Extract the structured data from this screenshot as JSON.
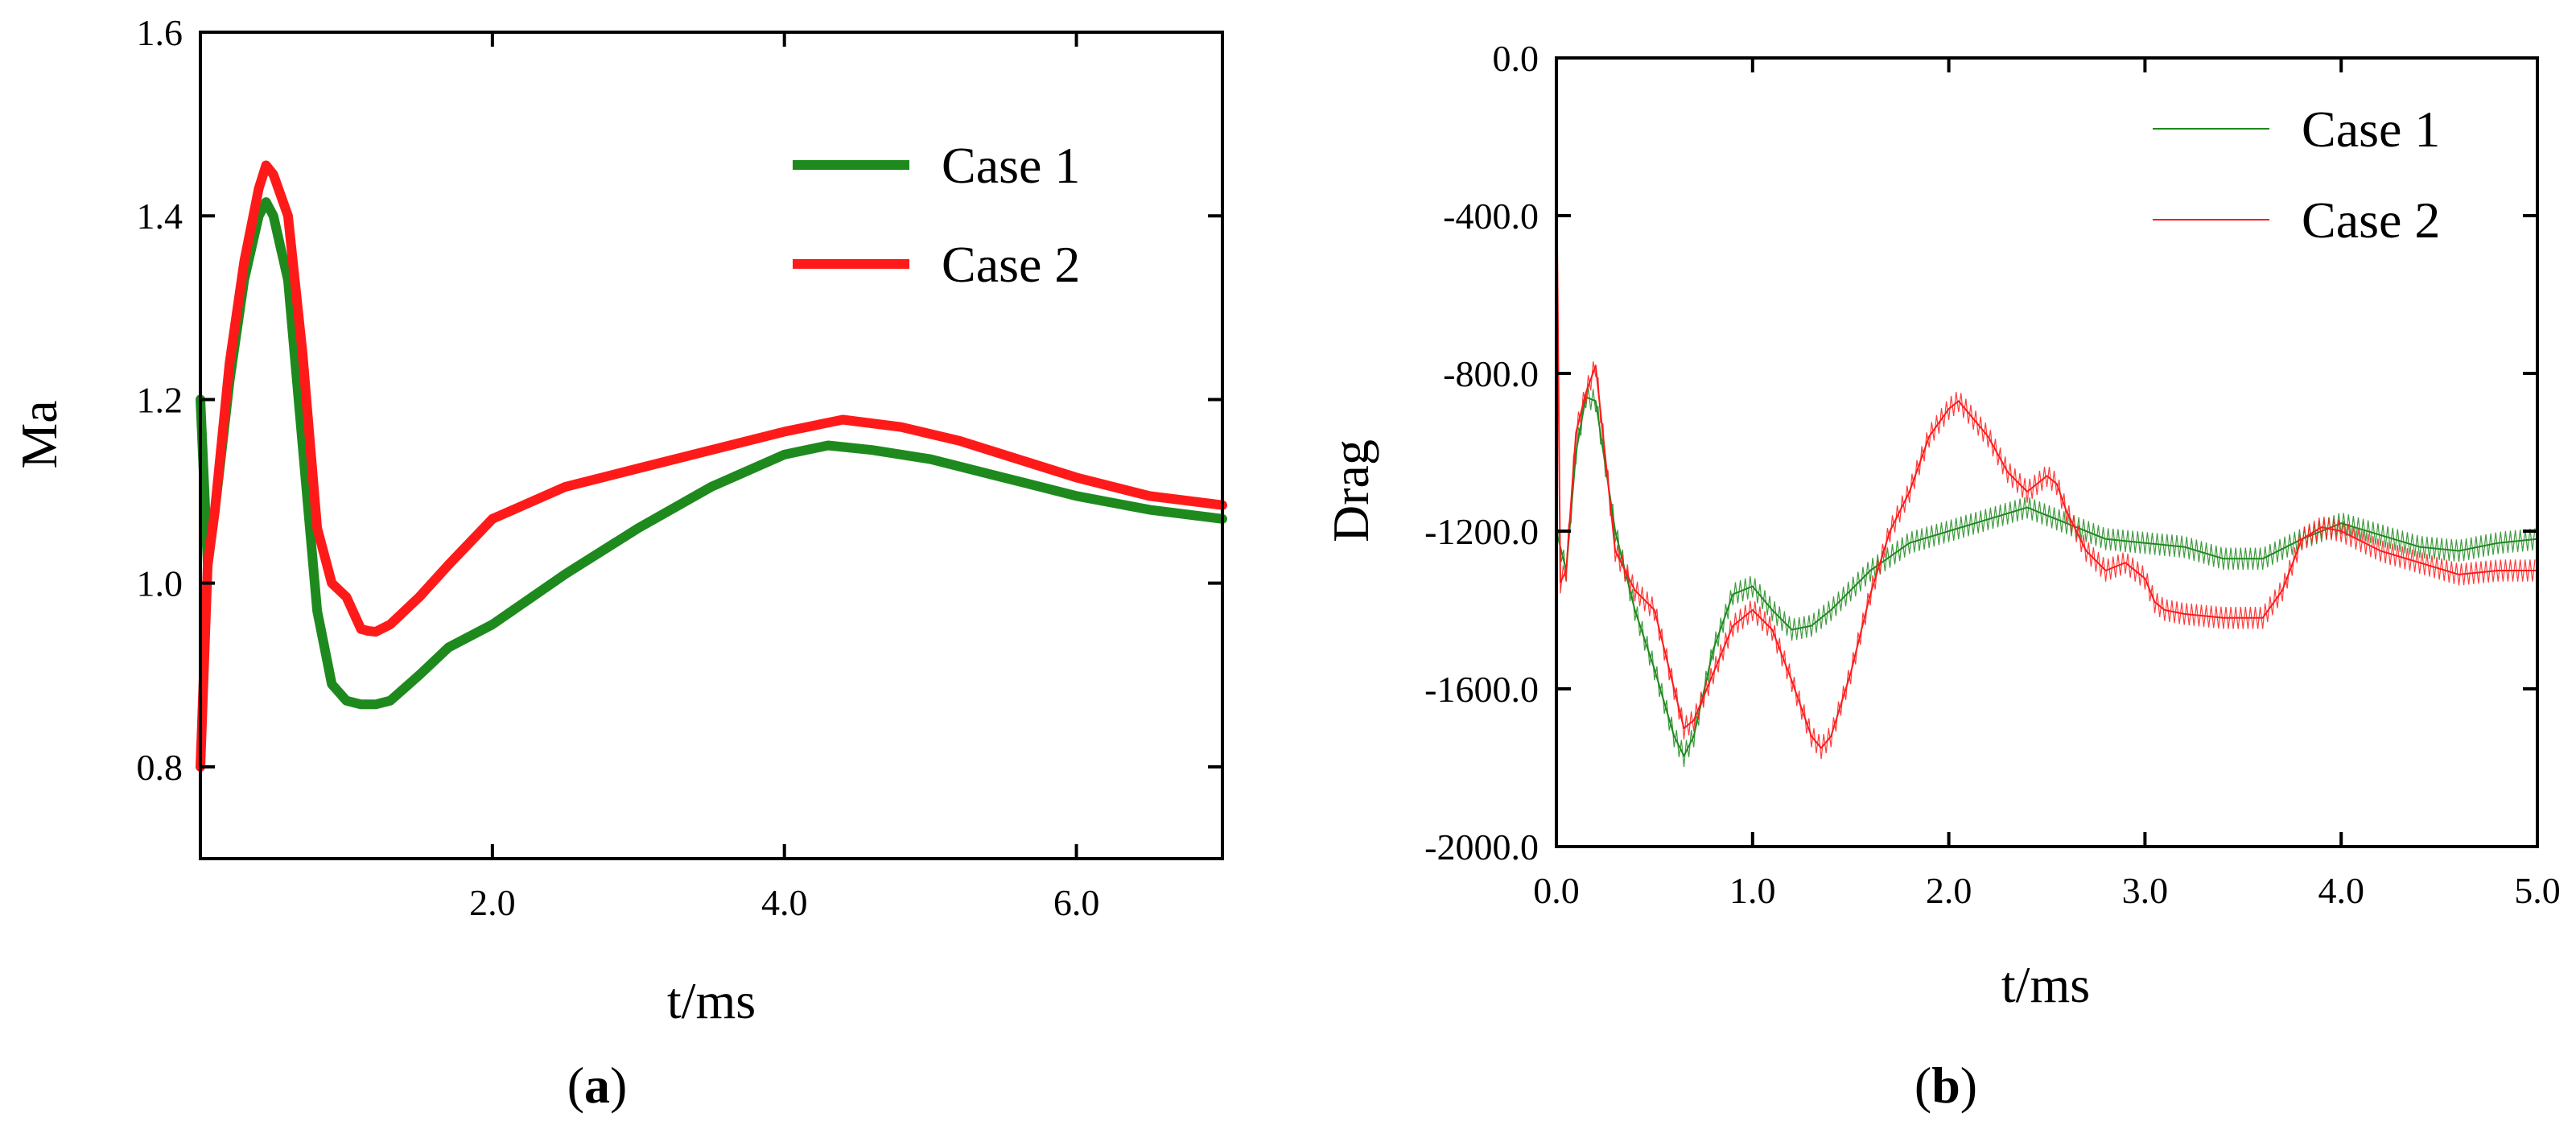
{
  "colors": {
    "case1": "#1e8a1e",
    "case2": "#ff1a1a",
    "axis": "#000000"
  },
  "chart_data": [
    {
      "type": "line",
      "panel_label": "a",
      "xlabel": "t/ms",
      "ylabel": "Ma",
      "xlim": [
        0,
        7.0
      ],
      "ylim": [
        0.7,
        1.6
      ],
      "xticks": [
        2.0,
        4.0,
        6.0
      ],
      "xtick_labels": [
        "2.0",
        "4.0",
        "6.0"
      ],
      "yticks": [
        0.8,
        1.0,
        1.2,
        1.4,
        1.6
      ],
      "ytick_labels": [
        "0.8",
        "1.0",
        "1.2",
        "1.4",
        "1.6"
      ],
      "legend": [
        "Case 1",
        "Case 2"
      ],
      "legend_position": "top-right",
      "series": [
        {
          "name": "Case 1",
          "x": [
            0.0,
            0.05,
            0.1,
            0.2,
            0.3,
            0.4,
            0.45,
            0.5,
            0.6,
            0.7,
            0.8,
            0.9,
            1.0,
            1.1,
            1.2,
            1.3,
            1.5,
            1.7,
            2.0,
            2.5,
            3.0,
            3.5,
            4.0,
            4.3,
            4.6,
            5.0,
            5.5,
            6.0,
            6.5,
            7.0
          ],
          "y": [
            1.2,
            1.02,
            1.08,
            1.22,
            1.33,
            1.4,
            1.415,
            1.4,
            1.33,
            1.15,
            0.97,
            0.89,
            0.872,
            0.868,
            0.868,
            0.872,
            0.9,
            0.93,
            0.955,
            1.01,
            1.06,
            1.105,
            1.14,
            1.15,
            1.145,
            1.135,
            1.115,
            1.095,
            1.08,
            1.07
          ]
        },
        {
          "name": "Case 2",
          "x": [
            0.0,
            0.05,
            0.1,
            0.2,
            0.3,
            0.4,
            0.45,
            0.5,
            0.6,
            0.7,
            0.8,
            0.9,
            1.0,
            1.1,
            1.15,
            1.2,
            1.3,
            1.5,
            1.7,
            2.0,
            2.5,
            3.0,
            3.5,
            4.0,
            4.4,
            4.8,
            5.2,
            5.6,
            6.0,
            6.5,
            7.0
          ],
          "y": [
            0.8,
            1.02,
            1.08,
            1.24,
            1.35,
            1.43,
            1.455,
            1.445,
            1.4,
            1.25,
            1.06,
            1.0,
            0.985,
            0.95,
            0.948,
            0.947,
            0.955,
            0.985,
            1.02,
            1.07,
            1.105,
            1.125,
            1.145,
            1.165,
            1.178,
            1.17,
            1.155,
            1.135,
            1.115,
            1.095,
            1.085
          ]
        }
      ]
    },
    {
      "type": "line",
      "panel_label": "b",
      "xlabel": "t/ms",
      "ylabel": "Drag",
      "xlim": [
        0,
        5.0
      ],
      "ylim": [
        -2000,
        0
      ],
      "xticks": [
        0.0,
        1.0,
        2.0,
        3.0,
        4.0,
        5.0
      ],
      "xtick_labels": [
        "0.0",
        "1.0",
        "2.0",
        "3.0",
        "4.0",
        "5.0"
      ],
      "yticks": [
        0,
        -400,
        -800,
        -1200,
        -1600,
        -2000
      ],
      "ytick_labels": [
        "0.0",
        "-400.0",
        "-800.0",
        "-1200.0",
        "-1600.0",
        "-2000.0"
      ],
      "legend": [
        "Case 1",
        "Case 2"
      ],
      "legend_position": "top-right",
      "series": [
        {
          "name": "Case 1",
          "x": [
            0.0,
            0.05,
            0.1,
            0.15,
            0.2,
            0.3,
            0.4,
            0.5,
            0.6,
            0.65,
            0.7,
            0.8,
            0.9,
            1.0,
            1.1,
            1.2,
            1.3,
            1.4,
            1.6,
            1.8,
            2.0,
            2.2,
            2.4,
            2.6,
            2.8,
            3.0,
            3.2,
            3.4,
            3.6,
            3.8,
            4.0,
            4.2,
            4.4,
            4.6,
            4.8,
            5.0
          ],
          "y": [
            -1200,
            -1300,
            -1000,
            -860,
            -870,
            -1200,
            -1400,
            -1550,
            -1720,
            -1770,
            -1720,
            -1500,
            -1360,
            -1340,
            -1400,
            -1450,
            -1440,
            -1400,
            -1300,
            -1230,
            -1200,
            -1170,
            -1140,
            -1180,
            -1220,
            -1230,
            -1240,
            -1270,
            -1270,
            -1220,
            -1180,
            -1210,
            -1240,
            -1250,
            -1230,
            -1220
          ]
        },
        {
          "name": "Case 2",
          "x": [
            0.0,
            0.02,
            0.05,
            0.1,
            0.15,
            0.2,
            0.3,
            0.4,
            0.5,
            0.6,
            0.65,
            0.7,
            0.8,
            0.9,
            1.0,
            1.1,
            1.2,
            1.3,
            1.35,
            1.4,
            1.5,
            1.6,
            1.7,
            1.8,
            1.9,
            2.0,
            2.05,
            2.1,
            2.2,
            2.3,
            2.4,
            2.5,
            2.55,
            2.6,
            2.7,
            2.8,
            2.9,
            3.0,
            3.05,
            3.1,
            3.2,
            3.4,
            3.6,
            3.7,
            3.8,
            3.9,
            4.0,
            4.2,
            4.4,
            4.6,
            4.8,
            5.0
          ],
          "y": [
            -250,
            -1330,
            -1300,
            -950,
            -850,
            -780,
            -1250,
            -1350,
            -1400,
            -1600,
            -1700,
            -1680,
            -1560,
            -1440,
            -1400,
            -1450,
            -1580,
            -1720,
            -1750,
            -1720,
            -1560,
            -1360,
            -1200,
            -1100,
            -960,
            -890,
            -870,
            -900,
            -960,
            -1050,
            -1100,
            -1060,
            -1080,
            -1150,
            -1250,
            -1300,
            -1280,
            -1320,
            -1380,
            -1400,
            -1410,
            -1420,
            -1420,
            -1350,
            -1220,
            -1190,
            -1200,
            -1250,
            -1280,
            -1310,
            -1300,
            -1300
          ]
        }
      ]
    }
  ]
}
